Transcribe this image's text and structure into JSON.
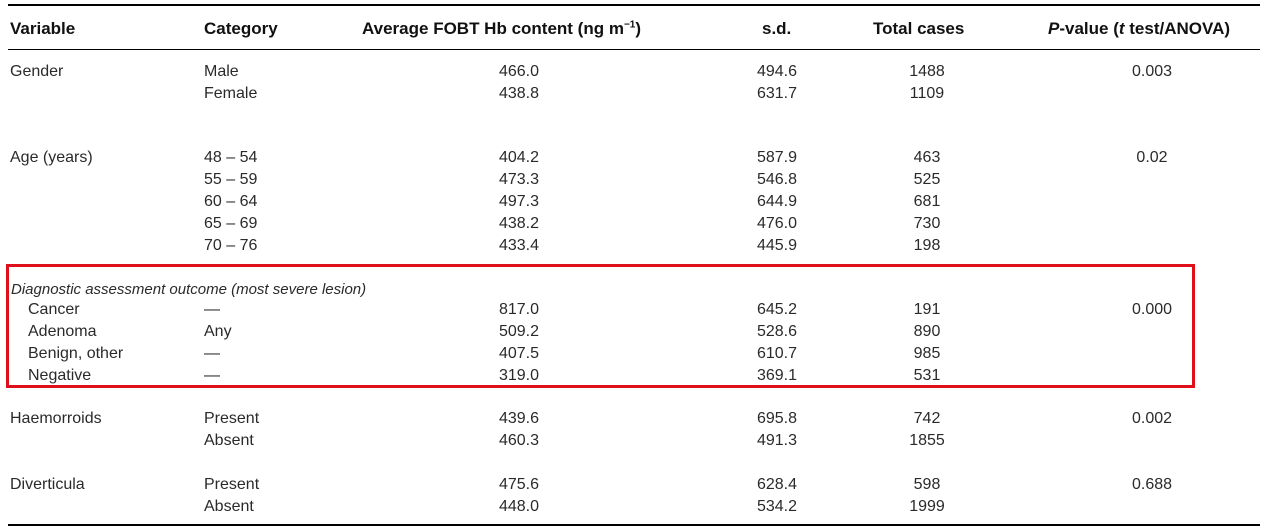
{
  "header": {
    "variable": "Variable",
    "category": "Category",
    "avg_prefix": "Average FOBT Hb content (ng m",
    "avg_sup": "−1",
    "avg_suffix": ")",
    "sd": "s.d.",
    "total": "Total cases",
    "p_prefix": "P",
    "p_mid": "-value (",
    "p_t": "t",
    "p_suffix": " test/ANOVA)"
  },
  "rows": [
    {
      "variable": "Gender",
      "category": "Male",
      "avg": "466.0",
      "sd": "494.6",
      "total": "1488",
      "p": "0.003"
    },
    {
      "variable": "",
      "category": "Female",
      "avg": "438.8",
      "sd": "631.7",
      "total": "1109",
      "p": ""
    },
    {
      "variable": "Age (years)",
      "category": "48 – 54",
      "avg": "404.2",
      "sd": "587.9",
      "total": "463",
      "p": "0.02"
    },
    {
      "variable": "",
      "category": "55 – 59",
      "avg": "473.3",
      "sd": "546.8",
      "total": "525",
      "p": ""
    },
    {
      "variable": "",
      "category": "60 – 64",
      "avg": "497.3",
      "sd": "644.9",
      "total": "681",
      "p": ""
    },
    {
      "variable": "",
      "category": "65 – 69",
      "avg": "438.2",
      "sd": "476.0",
      "total": "730",
      "p": ""
    },
    {
      "variable": "",
      "category": "70 – 76",
      "avg": "433.4",
      "sd": "445.9",
      "total": "198",
      "p": ""
    },
    {
      "variable": "Cancer",
      "category": "—",
      "avg": "817.0",
      "sd": "645.2",
      "total": "191",
      "p": "0.000"
    },
    {
      "variable": "Adenoma",
      "category": "Any",
      "avg": "509.2",
      "sd": "528.6",
      "total": "890",
      "p": ""
    },
    {
      "variable": "Benign, other",
      "category": "—",
      "avg": "407.5",
      "sd": "610.7",
      "total": "985",
      "p": ""
    },
    {
      "variable": "Negative",
      "category": "—",
      "avg": "319.0",
      "sd": "369.1",
      "total": "531",
      "p": ""
    },
    {
      "variable": "Haemorroids",
      "category": "Present",
      "avg": "439.6",
      "sd": "695.8",
      "total": "742",
      "p": "0.002"
    },
    {
      "variable": "",
      "category": "Absent",
      "avg": "460.3",
      "sd": "491.3",
      "total": "1855",
      "p": ""
    },
    {
      "variable": "Diverticula",
      "category": "Present",
      "avg": "475.6",
      "sd": "628.4",
      "total": "598",
      "p": "0.688"
    },
    {
      "variable": "",
      "category": "Absent",
      "avg": "448.0",
      "sd": "534.2",
      "total": "1999",
      "p": ""
    }
  ],
  "diagnostic_heading": "Diagnostic assessment outcome (most severe lesion)",
  "colors": {
    "highlight": "#e0101a",
    "rule": "#000000"
  }
}
